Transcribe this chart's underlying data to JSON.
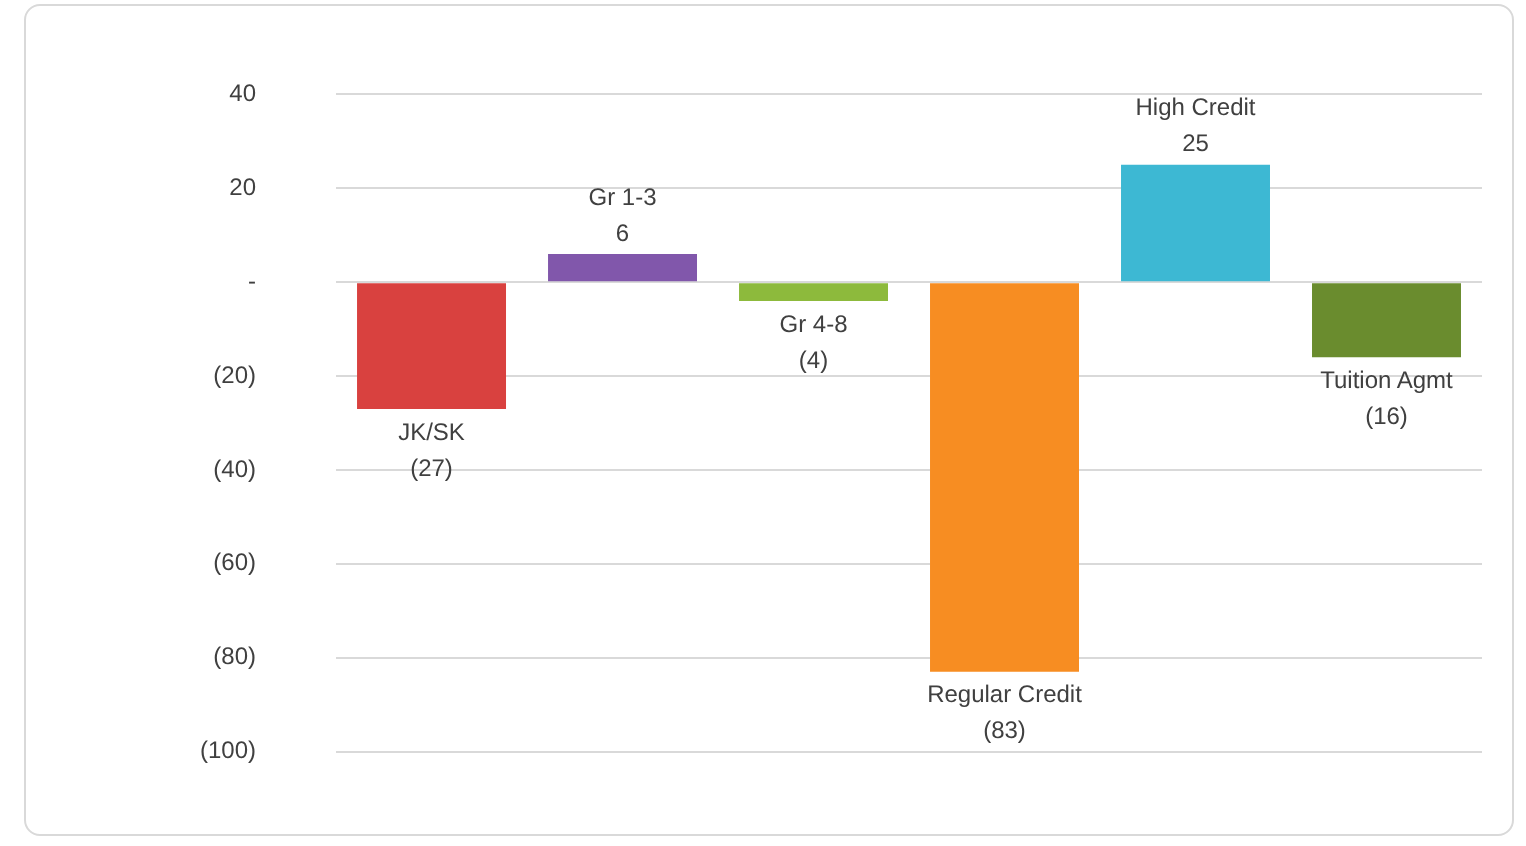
{
  "chart_data": {
    "type": "bar",
    "categories": [
      "JK/SK",
      "Gr 1-3",
      "Gr 4-8",
      "Regular Credit",
      "High Credit",
      "Tuition Agmt"
    ],
    "values": [
      -27,
      6,
      -4,
      -83,
      25,
      -16
    ],
    "value_labels": [
      "(27)",
      "6",
      "(4)",
      "(83)",
      "25",
      "(16)"
    ],
    "colors": [
      "#d9413f",
      "#8157ab",
      "#8dba3c",
      "#f78d22",
      "#3db8d3",
      "#6a8c2e"
    ],
    "ylim": [
      -100,
      40
    ],
    "yticks": [
      {
        "value": -100,
        "label": "(100)"
      },
      {
        "value": -80,
        "label": "(80)"
      },
      {
        "value": -60,
        "label": "(60)"
      },
      {
        "value": -40,
        "label": "(40)"
      },
      {
        "value": -20,
        "label": "(20)"
      },
      {
        "value": 0,
        "label": "-"
      },
      20,
      40
    ],
    "grid": "y",
    "tick_labels": "y",
    "legend": false
  }
}
